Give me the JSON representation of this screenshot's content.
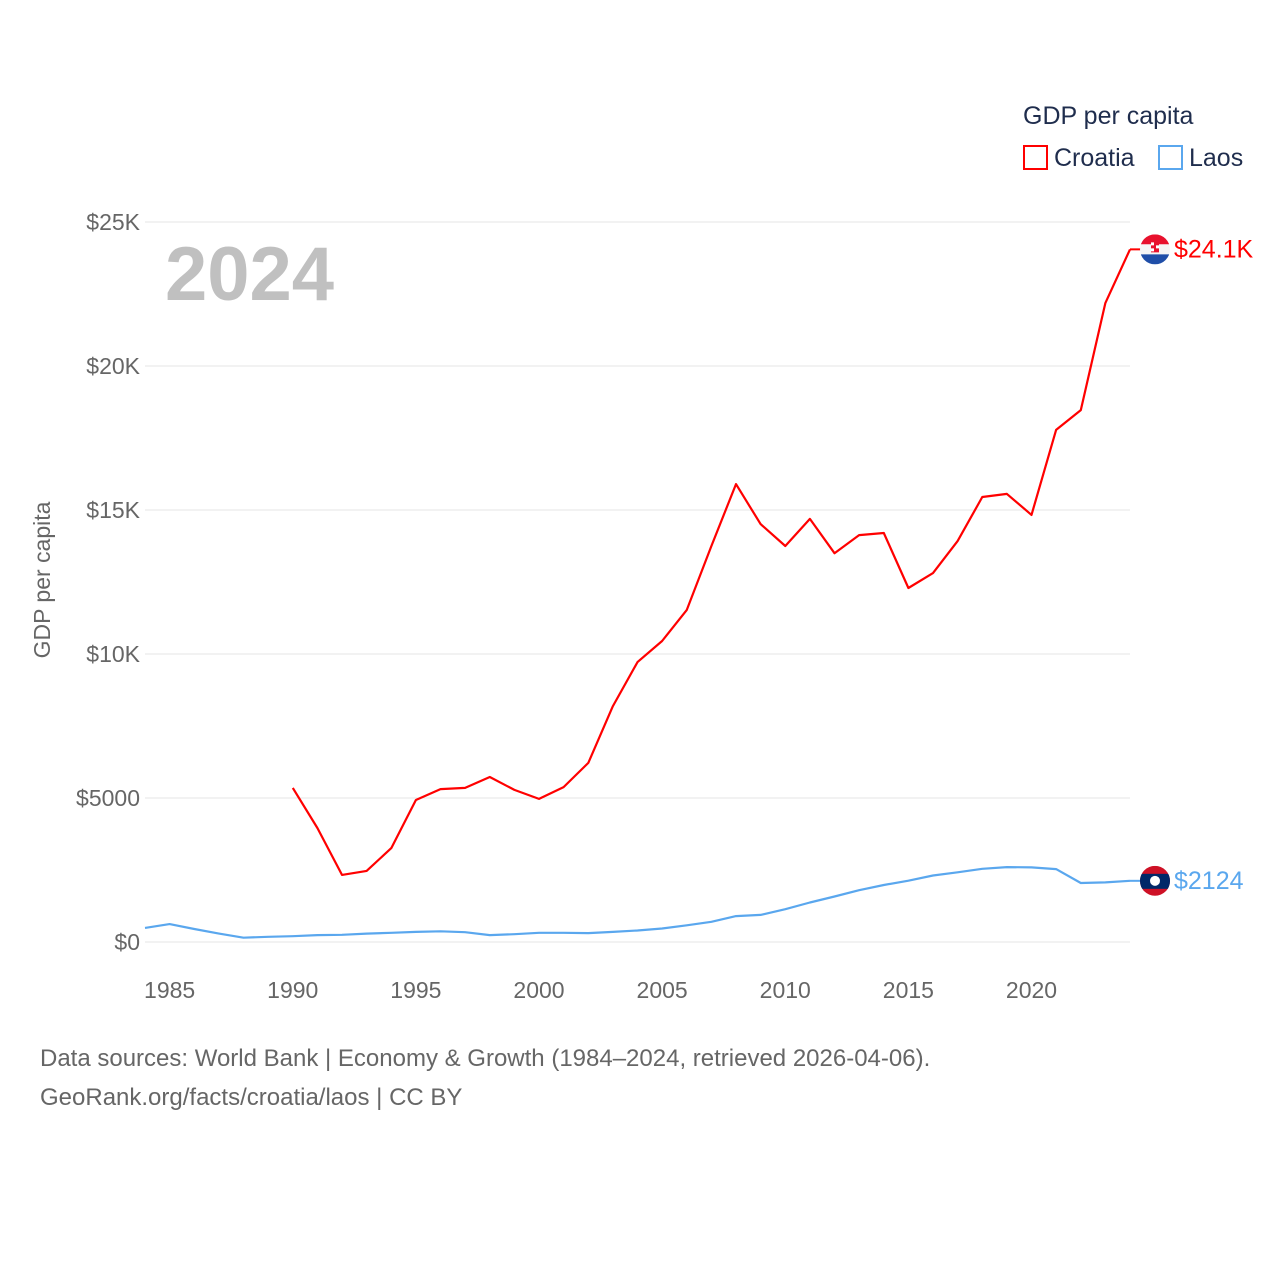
{
  "chart_data": {
    "type": "line",
    "year_label": "2024",
    "ylabel": "GDP per capita",
    "legend_title": "GDP per capita",
    "legend_placement": "top-right",
    "ylim": [
      0,
      25000
    ],
    "xlim": [
      1984,
      2024
    ],
    "y_ticks": [
      {
        "value": 0,
        "label": "$0"
      },
      {
        "value": 5000,
        "label": "$5000"
      },
      {
        "value": 10000,
        "label": "$10K"
      },
      {
        "value": 15000,
        "label": "$15K"
      },
      {
        "value": 20000,
        "label": "$20K"
      },
      {
        "value": 25000,
        "label": "$25K"
      }
    ],
    "x_ticks": [
      {
        "value": 1985,
        "label": "1985"
      },
      {
        "value": 1990,
        "label": "1990"
      },
      {
        "value": 1995,
        "label": "1995"
      },
      {
        "value": 2000,
        "label": "2000"
      },
      {
        "value": 2005,
        "label": "2005"
      },
      {
        "value": 2010,
        "label": "2010"
      },
      {
        "value": 2015,
        "label": "2015"
      },
      {
        "value": 2020,
        "label": "2020"
      }
    ],
    "series": [
      {
        "name": "Croatia",
        "color": "#ff0000",
        "end_label": "$24.1K",
        "flag": "croatia-flag",
        "start_year": 1990,
        "values": [
          5350,
          3960,
          2330,
          2470,
          3260,
          4930,
          5310,
          5350,
          5730,
          5280,
          4970,
          5380,
          6220,
          8190,
          9720,
          10450,
          11530,
          13750,
          15900,
          14510,
          13750,
          14690,
          13500,
          14130,
          14200,
          12290,
          12810,
          13920,
          15450,
          15560,
          14830,
          17780,
          18470,
          22190,
          24050
        ]
      },
      {
        "name": "Laos",
        "color": "#5aa7ee",
        "end_label": "$2124",
        "flag": "laos-flag",
        "start_year": 1984,
        "values": [
          490,
          620,
          450,
          290,
          150,
          180,
          200,
          240,
          250,
          290,
          320,
          350,
          370,
          340,
          240,
          270,
          320,
          320,
          310,
          350,
          400,
          470,
          580,
          700,
          900,
          940,
          1140,
          1370,
          1580,
          1800,
          1980,
          2130,
          2310,
          2420,
          2540,
          2600,
          2590,
          2530,
          2050,
          2070,
          2124
        ]
      }
    ]
  },
  "footer": {
    "line1": "Data sources: World Bank | Economy & Growth (1984–2024, retrieved 2026-04-06).",
    "line2": "GeoRank.org/facts/croatia/laos | CC BY"
  }
}
